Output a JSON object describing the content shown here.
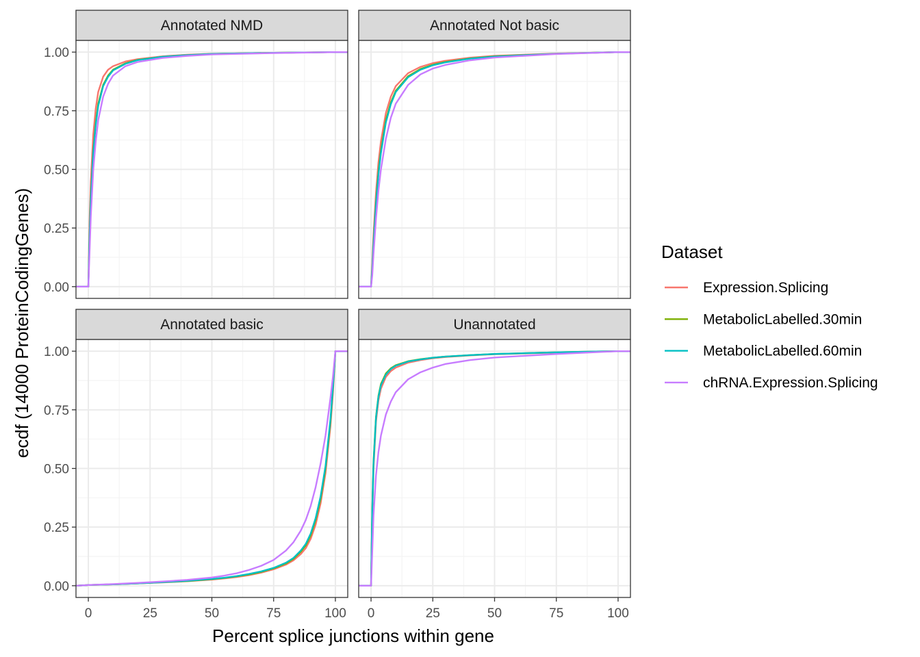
{
  "chart_data": {
    "type": "line",
    "subtype": "ecdf-facet-grid",
    "xlabel": "Percent splice junctions within gene",
    "ylabel": "ecdf (14000 ProteinCodingGenes)",
    "xlim": [
      -5,
      105
    ],
    "ylim": [
      -0.05,
      1.05
    ],
    "x_ticks": [
      0,
      25,
      50,
      75,
      100
    ],
    "x_tick_labels": [
      "0",
      "25",
      "50",
      "75",
      "100"
    ],
    "y_ticks": [
      0,
      0.25,
      0.5,
      0.75,
      1
    ],
    "y_tick_labels": [
      "0.00",
      "0.25",
      "0.50",
      "0.75",
      "1.00"
    ],
    "grid": true,
    "legend": {
      "title": "Dataset",
      "position": "right",
      "entries": [
        {
          "name": "Expression.Splicing",
          "color": "#F8766D"
        },
        {
          "name": "MetabolicLabelled.30min",
          "color": "#7CAE00"
        },
        {
          "name": "MetabolicLabelled.60min",
          "color": "#00BFC4"
        },
        {
          "name": "chRNA.Expression.Splicing",
          "color": "#C77CFF"
        }
      ]
    },
    "panels": [
      {
        "title": "Annotated NMD",
        "series": [
          {
            "name": "Expression.Splicing",
            "x": [
              -5,
              0,
              0.5,
              1,
              2,
              3,
              4,
              6,
              8,
              10,
              15,
              20,
              30,
              40,
              50,
              75,
              100,
              105
            ],
            "y": [
              0,
              0,
              0.28,
              0.45,
              0.65,
              0.76,
              0.83,
              0.895,
              0.925,
              0.94,
              0.96,
              0.97,
              0.982,
              0.989,
              0.993,
              0.997,
              1.0,
              1.0
            ]
          },
          {
            "name": "MetabolicLabelled.30min",
            "x": [
              -5,
              0,
              0.5,
              1,
              2,
              3,
              4,
              6,
              8,
              10,
              15,
              20,
              30,
              40,
              50,
              75,
              100,
              105
            ],
            "y": [
              0,
              0,
              0.22,
              0.38,
              0.58,
              0.7,
              0.78,
              0.86,
              0.9,
              0.925,
              0.952,
              0.967,
              0.98,
              0.987,
              0.992,
              0.997,
              1.0,
              1.0
            ]
          },
          {
            "name": "MetabolicLabelled.60min",
            "x": [
              -5,
              0,
              0.5,
              1,
              2,
              3,
              4,
              6,
              8,
              10,
              15,
              20,
              30,
              40,
              50,
              75,
              100,
              105
            ],
            "y": [
              0,
              0,
              0.21,
              0.37,
              0.57,
              0.69,
              0.77,
              0.855,
              0.895,
              0.922,
              0.95,
              0.966,
              0.98,
              0.987,
              0.992,
              0.997,
              1.0,
              1.0
            ]
          },
          {
            "name": "chRNA.Expression.Splicing",
            "x": [
              -5,
              0,
              0.5,
              1,
              2,
              3,
              4,
              6,
              8,
              10,
              15,
              20,
              30,
              40,
              50,
              75,
              100,
              105
            ],
            "y": [
              0,
              0,
              0.15,
              0.3,
              0.5,
              0.62,
              0.71,
              0.81,
              0.865,
              0.9,
              0.94,
              0.958,
              0.975,
              0.984,
              0.99,
              0.996,
              1.0,
              1.0
            ]
          }
        ]
      },
      {
        "title": "Annotated Not basic",
        "series": [
          {
            "name": "Expression.Splicing",
            "x": [
              -5,
              0,
              0.5,
              1,
              2,
              3,
              4,
              6,
              8,
              10,
              15,
              20,
              25,
              30,
              40,
              50,
              75,
              100,
              105
            ],
            "y": [
              0,
              0,
              0.1,
              0.22,
              0.4,
              0.53,
              0.62,
              0.74,
              0.81,
              0.855,
              0.91,
              0.937,
              0.953,
              0.963,
              0.976,
              0.984,
              0.994,
              1.0,
              1.0
            ]
          },
          {
            "name": "MetabolicLabelled.30min",
            "x": [
              -5,
              0,
              0.5,
              1,
              2,
              3,
              4,
              6,
              8,
              10,
              15,
              20,
              25,
              30,
              40,
              50,
              75,
              100,
              105
            ],
            "y": [
              0,
              0,
              0.08,
              0.19,
              0.36,
              0.49,
              0.58,
              0.71,
              0.785,
              0.835,
              0.897,
              0.928,
              0.946,
              0.958,
              0.973,
              0.982,
              0.993,
              1.0,
              1.0
            ]
          },
          {
            "name": "MetabolicLabelled.60min",
            "x": [
              -5,
              0,
              0.5,
              1,
              2,
              3,
              4,
              6,
              8,
              10,
              15,
              20,
              25,
              30,
              40,
              50,
              75,
              100,
              105
            ],
            "y": [
              0,
              0,
              0.075,
              0.18,
              0.35,
              0.48,
              0.57,
              0.7,
              0.778,
              0.83,
              0.893,
              0.925,
              0.944,
              0.956,
              0.972,
              0.981,
              0.993,
              1.0,
              1.0
            ]
          },
          {
            "name": "chRNA.Expression.Splicing",
            "x": [
              -5,
              0,
              0.5,
              1,
              2,
              3,
              4,
              6,
              8,
              10,
              15,
              20,
              25,
              30,
              40,
              50,
              75,
              100,
              105
            ],
            "y": [
              0,
              0,
              0.05,
              0.14,
              0.29,
              0.41,
              0.5,
              0.63,
              0.72,
              0.78,
              0.86,
              0.905,
              0.93,
              0.945,
              0.965,
              0.977,
              0.992,
              1.0,
              1.0
            ]
          }
        ]
      },
      {
        "title": "Annotated basic",
        "series": [
          {
            "name": "Expression.Splicing",
            "x": [
              -5,
              0,
              10,
              20,
              30,
              40,
              50,
              55,
              60,
              65,
              70,
              75,
              80,
              83,
              86,
              88,
              90,
              92,
              94,
              96,
              98,
              99,
              100,
              105
            ],
            "y": [
              0,
              0.003,
              0.006,
              0.01,
              0.014,
              0.019,
              0.026,
              0.031,
              0.037,
              0.045,
              0.056,
              0.07,
              0.09,
              0.108,
              0.135,
              0.16,
              0.2,
              0.26,
              0.35,
              0.48,
              0.68,
              0.82,
              1.0,
              1.0
            ]
          },
          {
            "name": "MetabolicLabelled.30min",
            "x": [
              -5,
              0,
              10,
              20,
              30,
              40,
              50,
              55,
              60,
              65,
              70,
              75,
              80,
              83,
              86,
              88,
              90,
              92,
              94,
              96,
              98,
              99,
              100,
              105
            ],
            "y": [
              0,
              0.003,
              0.006,
              0.01,
              0.015,
              0.02,
              0.028,
              0.033,
              0.04,
              0.048,
              0.059,
              0.074,
              0.095,
              0.115,
              0.145,
              0.172,
              0.215,
              0.28,
              0.37,
              0.5,
              0.7,
              0.84,
              1.0,
              1.0
            ]
          },
          {
            "name": "MetabolicLabelled.60min",
            "x": [
              -5,
              0,
              10,
              20,
              30,
              40,
              50,
              55,
              60,
              65,
              70,
              75,
              80,
              83,
              86,
              88,
              90,
              92,
              94,
              96,
              98,
              99,
              100,
              105
            ],
            "y": [
              0,
              0.003,
              0.006,
              0.01,
              0.015,
              0.021,
              0.029,
              0.034,
              0.041,
              0.05,
              0.061,
              0.076,
              0.098,
              0.118,
              0.15,
              0.178,
              0.222,
              0.288,
              0.38,
              0.51,
              0.71,
              0.845,
              1.0,
              1.0
            ]
          },
          {
            "name": "chRNA.Expression.Splicing",
            "x": [
              -5,
              0,
              10,
              20,
              30,
              40,
              50,
              55,
              60,
              65,
              70,
              75,
              80,
              83,
              86,
              88,
              90,
              92,
              94,
              96,
              98,
              99,
              100,
              105
            ],
            "y": [
              0,
              0.003,
              0.007,
              0.012,
              0.018,
              0.025,
              0.035,
              0.043,
              0.053,
              0.067,
              0.085,
              0.11,
              0.15,
              0.185,
              0.235,
              0.28,
              0.34,
              0.42,
              0.52,
              0.64,
              0.8,
              0.89,
              1.0,
              1.0
            ]
          }
        ]
      },
      {
        "title": "Unannotated",
        "series": [
          {
            "name": "Expression.Splicing",
            "x": [
              -5,
              0,
              0.5,
              1,
              2,
              3,
              4,
              6,
              8,
              10,
              15,
              20,
              25,
              30,
              40,
              50,
              75,
              100,
              105
            ],
            "y": [
              0,
              0,
              0.3,
              0.5,
              0.7,
              0.79,
              0.84,
              0.89,
              0.915,
              0.93,
              0.951,
              0.962,
              0.97,
              0.975,
              0.982,
              0.987,
              0.994,
              1.0,
              1.0
            ]
          },
          {
            "name": "MetabolicLabelled.30min",
            "x": [
              -5,
              0,
              0.5,
              1,
              2,
              3,
              4,
              6,
              8,
              10,
              15,
              20,
              25,
              30,
              40,
              50,
              75,
              100,
              105
            ],
            "y": [
              0,
              0,
              0.33,
              0.53,
              0.72,
              0.81,
              0.86,
              0.905,
              0.927,
              0.94,
              0.957,
              0.966,
              0.972,
              0.977,
              0.983,
              0.988,
              0.995,
              1.0,
              1.0
            ]
          },
          {
            "name": "MetabolicLabelled.60min",
            "x": [
              -5,
              0,
              0.5,
              1,
              2,
              3,
              4,
              6,
              8,
              10,
              15,
              20,
              25,
              30,
              40,
              50,
              75,
              100,
              105
            ],
            "y": [
              0,
              0,
              0.32,
              0.52,
              0.715,
              0.805,
              0.855,
              0.9,
              0.924,
              0.938,
              0.956,
              0.965,
              0.972,
              0.977,
              0.983,
              0.988,
              0.995,
              1.0,
              1.0
            ]
          },
          {
            "name": "chRNA.Expression.Splicing",
            "x": [
              -5,
              0,
              0.5,
              1,
              2,
              3,
              4,
              6,
              8,
              10,
              15,
              20,
              25,
              30,
              40,
              50,
              75,
              100,
              105
            ],
            "y": [
              0,
              0,
              0.15,
              0.3,
              0.47,
              0.57,
              0.64,
              0.73,
              0.785,
              0.825,
              0.88,
              0.91,
              0.93,
              0.945,
              0.962,
              0.973,
              0.988,
              1.0,
              1.0
            ]
          }
        ]
      }
    ]
  }
}
